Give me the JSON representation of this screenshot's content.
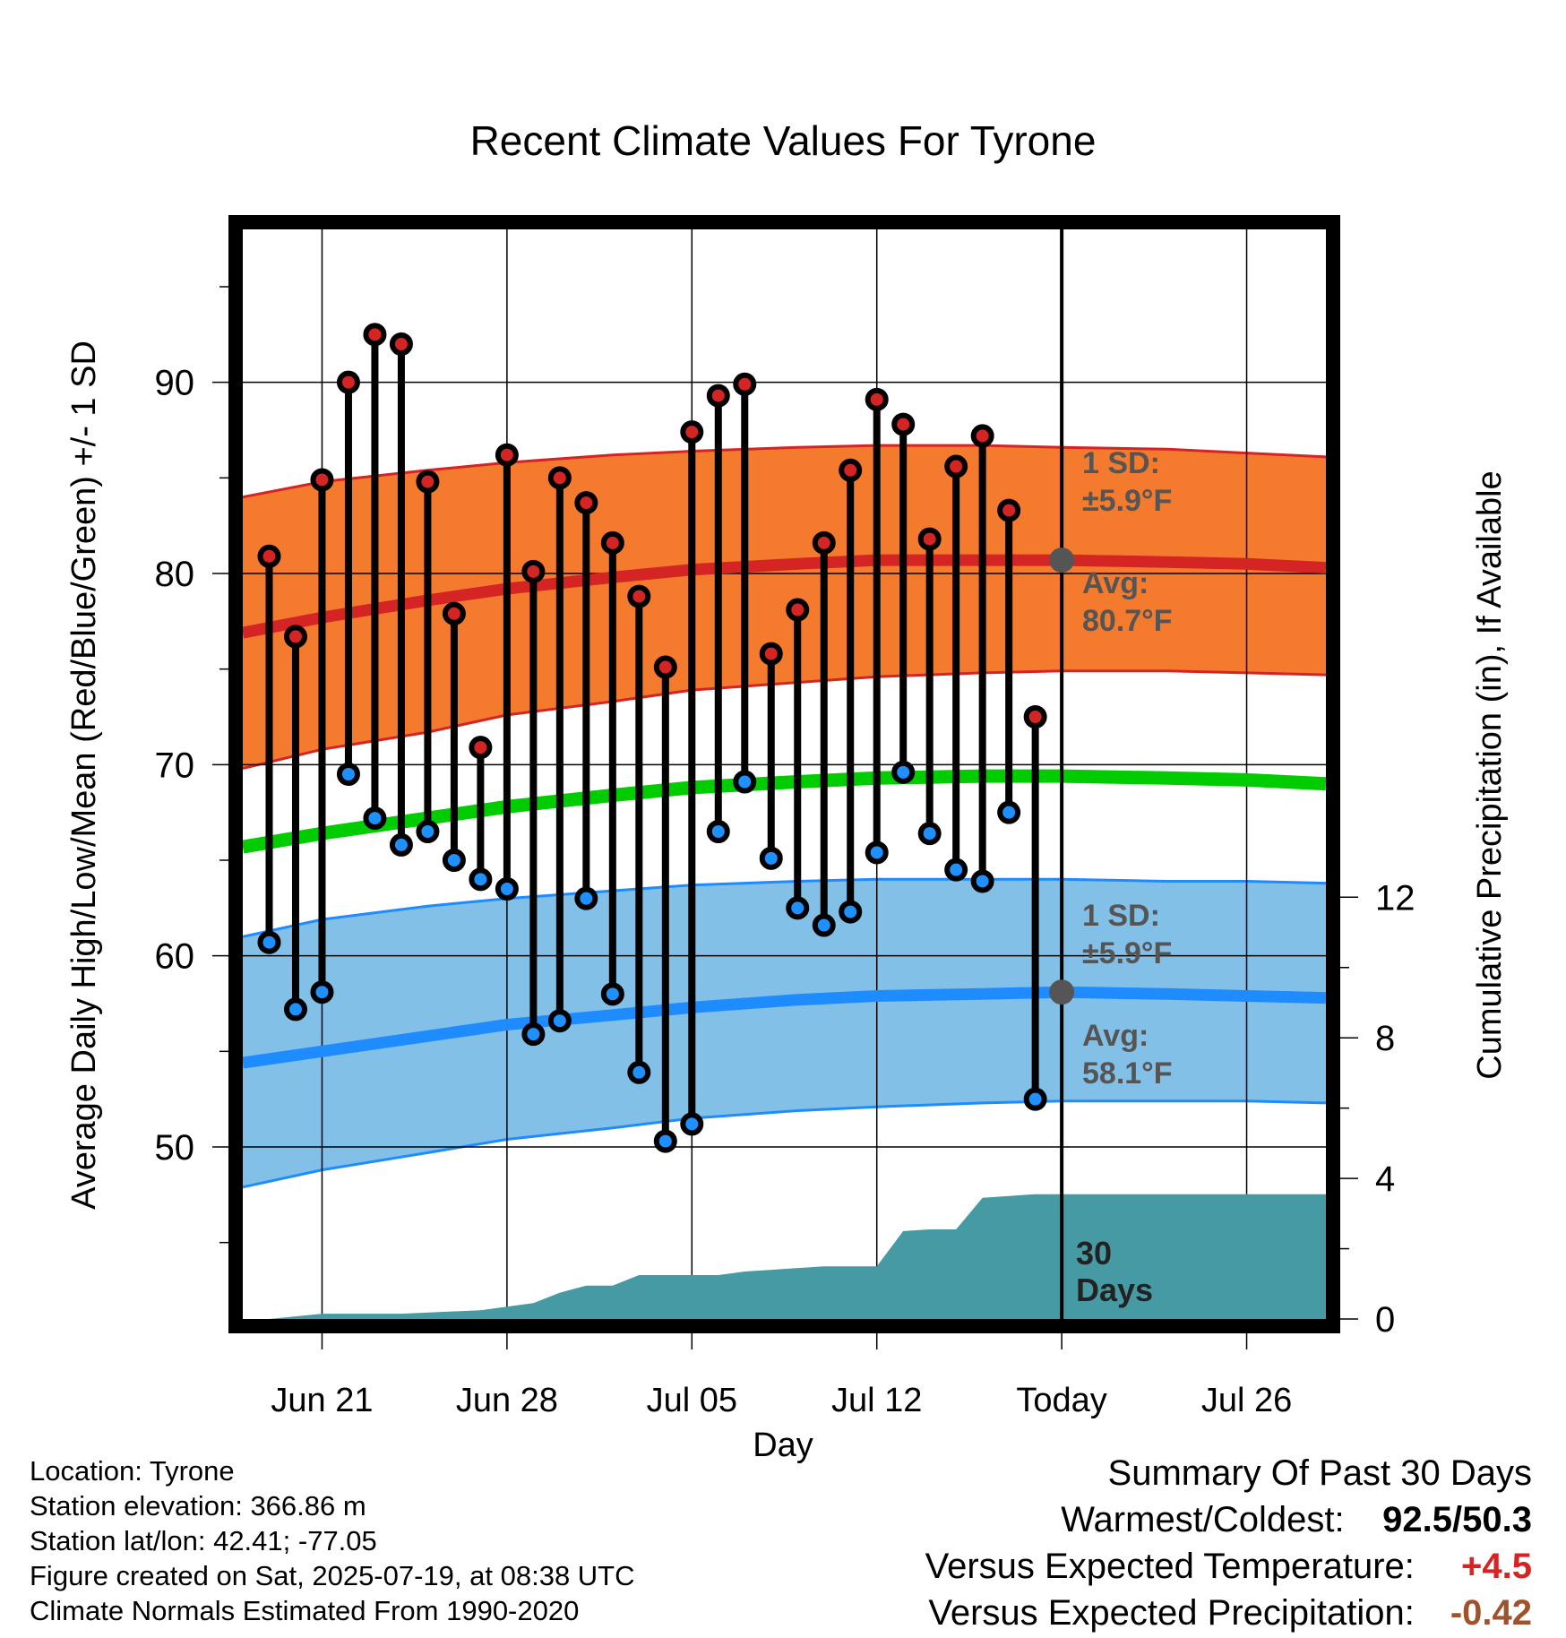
{
  "chart_data": {
    "type": "line",
    "title": "Recent Climate Values For Tyrone",
    "xlabel": "Day",
    "ylabel": "Average Daily High/Low/Mean (Red/Blue/Green) +/- 1 SD",
    "y2label": "Cumulative Precipitation (in), If Available",
    "ylim": [
      41,
      98
    ],
    "y2lim": [
      0,
      31
    ],
    "y_ticks": [
      "50",
      "60",
      "70",
      "80",
      "90"
    ],
    "y2_ticks": [
      "0",
      "4",
      "8",
      "12"
    ],
    "x_ticks": [
      "Jun 21",
      "Jun 28",
      "Jul 05",
      "Jul 12",
      "Today",
      "Jul 26"
    ],
    "grid": true,
    "today_marker": "30 Days",
    "dates": [
      "2025-06-19",
      "2025-06-20",
      "2025-06-21",
      "2025-06-22",
      "2025-06-23",
      "2025-06-24",
      "2025-06-25",
      "2025-06-26",
      "2025-06-27",
      "2025-06-28",
      "2025-06-29",
      "2025-06-30",
      "2025-07-01",
      "2025-07-02",
      "2025-07-03",
      "2025-07-04",
      "2025-07-05",
      "2025-07-06",
      "2025-07-07",
      "2025-07-08",
      "2025-07-09",
      "2025-07-10",
      "2025-07-11",
      "2025-07-12",
      "2025-07-13",
      "2025-07-14",
      "2025-07-15",
      "2025-07-16",
      "2025-07-17",
      "2025-07-18"
    ],
    "daily_high": [
      80.9,
      76.7,
      84.9,
      90.0,
      92.5,
      92.0,
      84.8,
      77.9,
      70.9,
      86.2,
      80.1,
      85.0,
      83.7,
      81.6,
      78.8,
      75.1,
      87.4,
      89.3,
      89.9,
      75.8,
      78.1,
      81.6,
      85.4,
      89.1,
      87.8,
      81.8,
      85.6,
      87.2,
      83.3,
      72.5
    ],
    "daily_low": [
      60.7,
      57.2,
      58.1,
      69.5,
      67.2,
      65.8,
      66.5,
      65.0,
      64.0,
      63.5,
      55.9,
      56.6,
      63.0,
      58.0,
      53.9,
      50.3,
      51.2,
      66.5,
      69.1,
      65.1,
      62.5,
      61.6,
      62.3,
      65.4,
      69.6,
      66.4,
      64.5,
      63.9,
      67.5,
      52.5
    ],
    "normals": {
      "dates": [
        "2025-06-18",
        "2025-06-21",
        "2025-06-25",
        "2025-06-28",
        "2025-07-02",
        "2025-07-05",
        "2025-07-09",
        "2025-07-12",
        "2025-07-16",
        "2025-07-19",
        "2025-07-23",
        "2025-07-26",
        "2025-07-29"
      ],
      "avg_high": [
        76.9,
        77.7,
        78.6,
        79.2,
        79.8,
        80.2,
        80.5,
        80.7,
        80.7,
        80.7,
        80.6,
        80.5,
        80.3
      ],
      "avg_low": [
        54.4,
        55.0,
        55.8,
        56.4,
        56.9,
        57.3,
        57.7,
        57.9,
        58.0,
        58.1,
        58.0,
        57.9,
        57.8
      ],
      "avg_mean": [
        65.7,
        66.4,
        67.2,
        67.8,
        68.4,
        68.8,
        69.1,
        69.3,
        69.4,
        69.4,
        69.3,
        69.2,
        69.0
      ],
      "high_upper": [
        84.0,
        84.8,
        85.4,
        85.8,
        86.2,
        86.4,
        86.6,
        86.7,
        86.7,
        86.6,
        86.5,
        86.3,
        86.1
      ],
      "high_lower": [
        69.8,
        70.8,
        71.7,
        72.6,
        73.3,
        73.9,
        74.3,
        74.6,
        74.8,
        74.9,
        74.9,
        74.8,
        74.7
      ],
      "low_upper": [
        61.0,
        61.9,
        62.6,
        63.0,
        63.4,
        63.7,
        63.9,
        64.0,
        64.0,
        64.0,
        63.9,
        63.9,
        63.8
      ],
      "low_lower": [
        47.9,
        48.8,
        49.7,
        50.4,
        51.0,
        51.5,
        51.9,
        52.1,
        52.3,
        52.4,
        52.4,
        52.4,
        52.3
      ]
    },
    "precip_cumulative": {
      "dates": [
        "2025-06-19",
        "2025-06-21",
        "2025-06-24",
        "2025-06-27",
        "2025-06-28",
        "2025-06-29",
        "2025-06-30",
        "2025-07-01",
        "2025-07-02",
        "2025-07-03",
        "2025-07-06",
        "2025-07-07",
        "2025-07-08",
        "2025-07-10",
        "2025-07-12",
        "2025-07-13",
        "2025-07-14",
        "2025-07-15",
        "2025-07-16",
        "2025-07-17",
        "2025-07-18",
        "2025-07-19",
        "2025-07-29"
      ],
      "values": [
        0.0,
        0.15,
        0.15,
        0.25,
        0.35,
        0.45,
        0.75,
        0.95,
        0.95,
        1.25,
        1.25,
        1.35,
        1.4,
        1.5,
        1.5,
        2.5,
        2.55,
        2.55,
        3.45,
        3.5,
        3.55,
        3.55,
        3.55
      ]
    },
    "annotations": {
      "high_sd_label": "1 SD:",
      "high_sd_value": "±5.9°F",
      "high_avg_label": "Avg:",
      "high_avg_value": "80.7°F",
      "low_sd_label": "1 SD:",
      "low_sd_value": "±5.9°F",
      "low_avg_label": "Avg:",
      "low_avg_value": "58.1°F"
    }
  },
  "footer": {
    "location": "Location: Tyrone",
    "elevation": "Station elevation: 366.86 m",
    "latlon": "Station lat/lon: 42.41; -77.05",
    "created": "Figure created on Sat, 2025-07-19, at 08:38 UTC",
    "normals_note": "Climate Normals Estimated From 1990-2020"
  },
  "summary": {
    "title": "Summary Of Past 30 Days",
    "warm_cold_label": "Warmest/Coldest:",
    "warm_cold_value": "92.5/50.3",
    "temp_label": "Versus Expected Temperature:",
    "temp_value": "+4.5",
    "precip_label": "Versus Expected Precipitation:",
    "precip_value": "-0.42"
  },
  "colors": {
    "high_band": "#F47A2E",
    "high_line": "#D42424",
    "low_band": "#82C0E8",
    "low_line": "#1E8CFF",
    "mean_line": "#00CC00",
    "precip": "#469AA3",
    "high_dot": "#D42424",
    "low_dot": "#1E90FF",
    "avg_marker": "#555555",
    "annotation_text": "#555555",
    "temp_anomaly": "#D42424",
    "precip_anomaly": "#A0522D"
  }
}
